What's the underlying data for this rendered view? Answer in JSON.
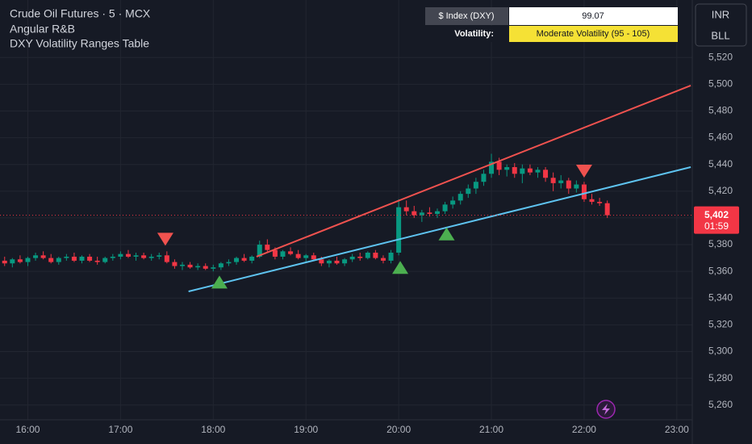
{
  "chart_data": {
    "type": "candlestick",
    "legend_lines": [
      "Crude Oil Futures · 5 · MCX",
      "Angular R&B",
      "DXY Volatility Ranges Table"
    ],
    "buttons": [
      "INR",
      "BLL"
    ],
    "table": {
      "rows": [
        [
          "$ Index (DXY)",
          "99.07"
        ],
        [
          "Volatility:",
          "Moderate Volatility (95 - 105)"
        ]
      ]
    },
    "up_color": "#089981",
    "down_color": "#f23645",
    "xlim": [
      "15:42",
      "23:10"
    ],
    "xticks": [
      "16:00",
      "17:00",
      "18:00",
      "19:00",
      "20:00",
      "21:00",
      "22:00",
      "23:00"
    ],
    "ylim": [
      5249,
      5563
    ],
    "yticks": [
      {
        "value": 5260,
        "label": "5,260"
      },
      {
        "value": 5280,
        "label": "5,280"
      },
      {
        "value": 5300,
        "label": "5,300"
      },
      {
        "value": 5320,
        "label": "5,320"
      },
      {
        "value": 5340,
        "label": "5,340"
      },
      {
        "value": 5360,
        "label": "5,360"
      },
      {
        "value": 5380,
        "label": "5,380"
      },
      {
        "value": 5400,
        "label": "5,400"
      },
      {
        "value": 5420,
        "label": "5,420"
      },
      {
        "value": 5440,
        "label": "5,440"
      },
      {
        "value": 5460,
        "label": "5,460"
      },
      {
        "value": 5480,
        "label": "5,480"
      },
      {
        "value": 5500,
        "label": "5,500"
      },
      {
        "value": 5520,
        "label": "5,520"
      }
    ],
    "grid": true,
    "last_price": {
      "value": 5402,
      "label": "5,402"
    },
    "countdown": "01:59",
    "trendlines": [
      {
        "color": "#f0524f",
        "x": [
          "18:28",
          "23:09"
        ],
        "values": [
          5371,
          5499
        ]
      },
      {
        "color": "#5ec3f0",
        "x": [
          "17:44",
          "23:09"
        ],
        "values": [
          5345,
          5438
        ]
      }
    ],
    "signals": [
      {
        "kind": "sell",
        "x": "17:29",
        "value": 5384
      },
      {
        "kind": "buy",
        "x": "18:04",
        "value": 5352
      },
      {
        "kind": "buy",
        "x": "20:01",
        "value": 5363
      },
      {
        "kind": "buy",
        "x": "20:31",
        "value": 5388
      },
      {
        "kind": "sell",
        "x": "22:00",
        "value": 5435
      }
    ],
    "candles": [
      {
        "t": "15:45",
        "o": 5368,
        "h": 5371,
        "l": 5364,
        "c": 5366
      },
      {
        "t": "15:50",
        "o": 5366,
        "h": 5370,
        "l": 5363,
        "c": 5369
      },
      {
        "t": "15:55",
        "o": 5369,
        "h": 5372,
        "l": 5366,
        "c": 5367
      },
      {
        "t": "16:00",
        "o": 5367,
        "h": 5371,
        "l": 5364,
        "c": 5370
      },
      {
        "t": "16:05",
        "o": 5370,
        "h": 5374,
        "l": 5368,
        "c": 5372
      },
      {
        "t": "16:10",
        "o": 5372,
        "h": 5375,
        "l": 5369,
        "c": 5370
      },
      {
        "t": "16:15",
        "o": 5370,
        "h": 5373,
        "l": 5366,
        "c": 5367
      },
      {
        "t": "16:20",
        "o": 5367,
        "h": 5371,
        "l": 5365,
        "c": 5370
      },
      {
        "t": "16:25",
        "o": 5370,
        "h": 5373,
        "l": 5368,
        "c": 5371
      },
      {
        "t": "16:30",
        "o": 5371,
        "h": 5374,
        "l": 5367,
        "c": 5368
      },
      {
        "t": "16:35",
        "o": 5368,
        "h": 5372,
        "l": 5366,
        "c": 5371
      },
      {
        "t": "16:40",
        "o": 5371,
        "h": 5373,
        "l": 5367,
        "c": 5368
      },
      {
        "t": "16:45",
        "o": 5368,
        "h": 5371,
        "l": 5365,
        "c": 5367
      },
      {
        "t": "16:50",
        "o": 5367,
        "h": 5371,
        "l": 5366,
        "c": 5370
      },
      {
        "t": "16:55",
        "o": 5370,
        "h": 5373,
        "l": 5368,
        "c": 5371
      },
      {
        "t": "17:00",
        "o": 5371,
        "h": 5375,
        "l": 5369,
        "c": 5373
      },
      {
        "t": "17:05",
        "o": 5373,
        "h": 5376,
        "l": 5370,
        "c": 5371
      },
      {
        "t": "17:10",
        "o": 5371,
        "h": 5374,
        "l": 5368,
        "c": 5372
      },
      {
        "t": "17:15",
        "o": 5372,
        "h": 5374,
        "l": 5369,
        "c": 5370
      },
      {
        "t": "17:20",
        "o": 5370,
        "h": 5373,
        "l": 5368,
        "c": 5371
      },
      {
        "t": "17:25",
        "o": 5371,
        "h": 5374,
        "l": 5369,
        "c": 5372
      },
      {
        "t": "17:30",
        "o": 5372,
        "h": 5375,
        "l": 5366,
        "c": 5367
      },
      {
        "t": "17:35",
        "o": 5367,
        "h": 5369,
        "l": 5362,
        "c": 5364
      },
      {
        "t": "17:40",
        "o": 5364,
        "h": 5367,
        "l": 5361,
        "c": 5365
      },
      {
        "t": "17:45",
        "o": 5365,
        "h": 5367,
        "l": 5362,
        "c": 5363
      },
      {
        "t": "17:50",
        "o": 5363,
        "h": 5366,
        "l": 5361,
        "c": 5364
      },
      {
        "t": "17:55",
        "o": 5364,
        "h": 5366,
        "l": 5361,
        "c": 5362
      },
      {
        "t": "18:00",
        "o": 5362,
        "h": 5365,
        "l": 5360,
        "c": 5363
      },
      {
        "t": "18:05",
        "o": 5363,
        "h": 5367,
        "l": 5361,
        "c": 5366
      },
      {
        "t": "18:10",
        "o": 5366,
        "h": 5369,
        "l": 5364,
        "c": 5367
      },
      {
        "t": "18:15",
        "o": 5367,
        "h": 5371,
        "l": 5365,
        "c": 5370
      },
      {
        "t": "18:20",
        "o": 5370,
        "h": 5373,
        "l": 5367,
        "c": 5368
      },
      {
        "t": "18:25",
        "o": 5368,
        "h": 5372,
        "l": 5366,
        "c": 5371
      },
      {
        "t": "18:30",
        "o": 5371,
        "h": 5383,
        "l": 5370,
        "c": 5380
      },
      {
        "t": "18:35",
        "o": 5380,
        "h": 5384,
        "l": 5374,
        "c": 5376
      },
      {
        "t": "18:40",
        "o": 5376,
        "h": 5378,
        "l": 5369,
        "c": 5371
      },
      {
        "t": "18:45",
        "o": 5371,
        "h": 5376,
        "l": 5369,
        "c": 5375
      },
      {
        "t": "18:50",
        "o": 5375,
        "h": 5378,
        "l": 5372,
        "c": 5373
      },
      {
        "t": "18:55",
        "o": 5373,
        "h": 5376,
        "l": 5369,
        "c": 5370
      },
      {
        "t": "19:00",
        "o": 5370,
        "h": 5373,
        "l": 5367,
        "c": 5372
      },
      {
        "t": "19:05",
        "o": 5372,
        "h": 5374,
        "l": 5368,
        "c": 5369
      },
      {
        "t": "19:10",
        "o": 5369,
        "h": 5371,
        "l": 5364,
        "c": 5366
      },
      {
        "t": "19:15",
        "o": 5366,
        "h": 5369,
        "l": 5363,
        "c": 5368
      },
      {
        "t": "19:20",
        "o": 5368,
        "h": 5371,
        "l": 5365,
        "c": 5366
      },
      {
        "t": "19:25",
        "o": 5366,
        "h": 5370,
        "l": 5364,
        "c": 5369
      },
      {
        "t": "19:30",
        "o": 5369,
        "h": 5373,
        "l": 5367,
        "c": 5371
      },
      {
        "t": "19:35",
        "o": 5371,
        "h": 5374,
        "l": 5368,
        "c": 5370
      },
      {
        "t": "19:40",
        "o": 5370,
        "h": 5375,
        "l": 5369,
        "c": 5374
      },
      {
        "t": "19:45",
        "o": 5374,
        "h": 5376,
        "l": 5369,
        "c": 5370
      },
      {
        "t": "19:50",
        "o": 5370,
        "h": 5372,
        "l": 5366,
        "c": 5368
      },
      {
        "t": "19:55",
        "o": 5368,
        "h": 5376,
        "l": 5366,
        "c": 5374
      },
      {
        "t": "20:00",
        "o": 5374,
        "h": 5414,
        "l": 5372,
        "c": 5408
      },
      {
        "t": "20:05",
        "o": 5408,
        "h": 5413,
        "l": 5402,
        "c": 5405
      },
      {
        "t": "20:10",
        "o": 5405,
        "h": 5409,
        "l": 5400,
        "c": 5402
      },
      {
        "t": "20:15",
        "o": 5402,
        "h": 5406,
        "l": 5397,
        "c": 5404
      },
      {
        "t": "20:20",
        "o": 5404,
        "h": 5408,
        "l": 5401,
        "c": 5403
      },
      {
        "t": "20:25",
        "o": 5403,
        "h": 5407,
        "l": 5400,
        "c": 5405
      },
      {
        "t": "20:30",
        "o": 5405,
        "h": 5412,
        "l": 5403,
        "c": 5410
      },
      {
        "t": "20:35",
        "o": 5410,
        "h": 5416,
        "l": 5407,
        "c": 5413
      },
      {
        "t": "20:40",
        "o": 5413,
        "h": 5420,
        "l": 5410,
        "c": 5418
      },
      {
        "t": "20:45",
        "o": 5418,
        "h": 5425,
        "l": 5415,
        "c": 5422
      },
      {
        "t": "20:50",
        "o": 5422,
        "h": 5430,
        "l": 5418,
        "c": 5427
      },
      {
        "t": "20:55",
        "o": 5427,
        "h": 5436,
        "l": 5424,
        "c": 5433
      },
      {
        "t": "21:00",
        "o": 5433,
        "h": 5448,
        "l": 5430,
        "c": 5442
      },
      {
        "t": "21:05",
        "o": 5442,
        "h": 5445,
        "l": 5432,
        "c": 5436
      },
      {
        "t": "21:10",
        "o": 5436,
        "h": 5440,
        "l": 5431,
        "c": 5438
      },
      {
        "t": "21:15",
        "o": 5438,
        "h": 5441,
        "l": 5430,
        "c": 5433
      },
      {
        "t": "21:20",
        "o": 5433,
        "h": 5440,
        "l": 5426,
        "c": 5437
      },
      {
        "t": "21:25",
        "o": 5437,
        "h": 5440,
        "l": 5432,
        "c": 5434
      },
      {
        "t": "21:30",
        "o": 5434,
        "h": 5438,
        "l": 5430,
        "c": 5436
      },
      {
        "t": "21:35",
        "o": 5436,
        "h": 5438,
        "l": 5427,
        "c": 5430
      },
      {
        "t": "21:40",
        "o": 5430,
        "h": 5434,
        "l": 5420,
        "c": 5426
      },
      {
        "t": "21:45",
        "o": 5426,
        "h": 5432,
        "l": 5422,
        "c": 5428
      },
      {
        "t": "21:50",
        "o": 5428,
        "h": 5430,
        "l": 5418,
        "c": 5422
      },
      {
        "t": "21:55",
        "o": 5422,
        "h": 5428,
        "l": 5419,
        "c": 5425
      },
      {
        "t": "22:00",
        "o": 5425,
        "h": 5427,
        "l": 5412,
        "c": 5414
      },
      {
        "t": "22:05",
        "o": 5414,
        "h": 5418,
        "l": 5410,
        "c": 5412
      },
      {
        "t": "22:10",
        "o": 5412,
        "h": 5415,
        "l": 5409,
        "c": 5411
      },
      {
        "t": "22:15",
        "o": 5411,
        "h": 5413,
        "l": 5400,
        "c": 5402
      }
    ]
  }
}
